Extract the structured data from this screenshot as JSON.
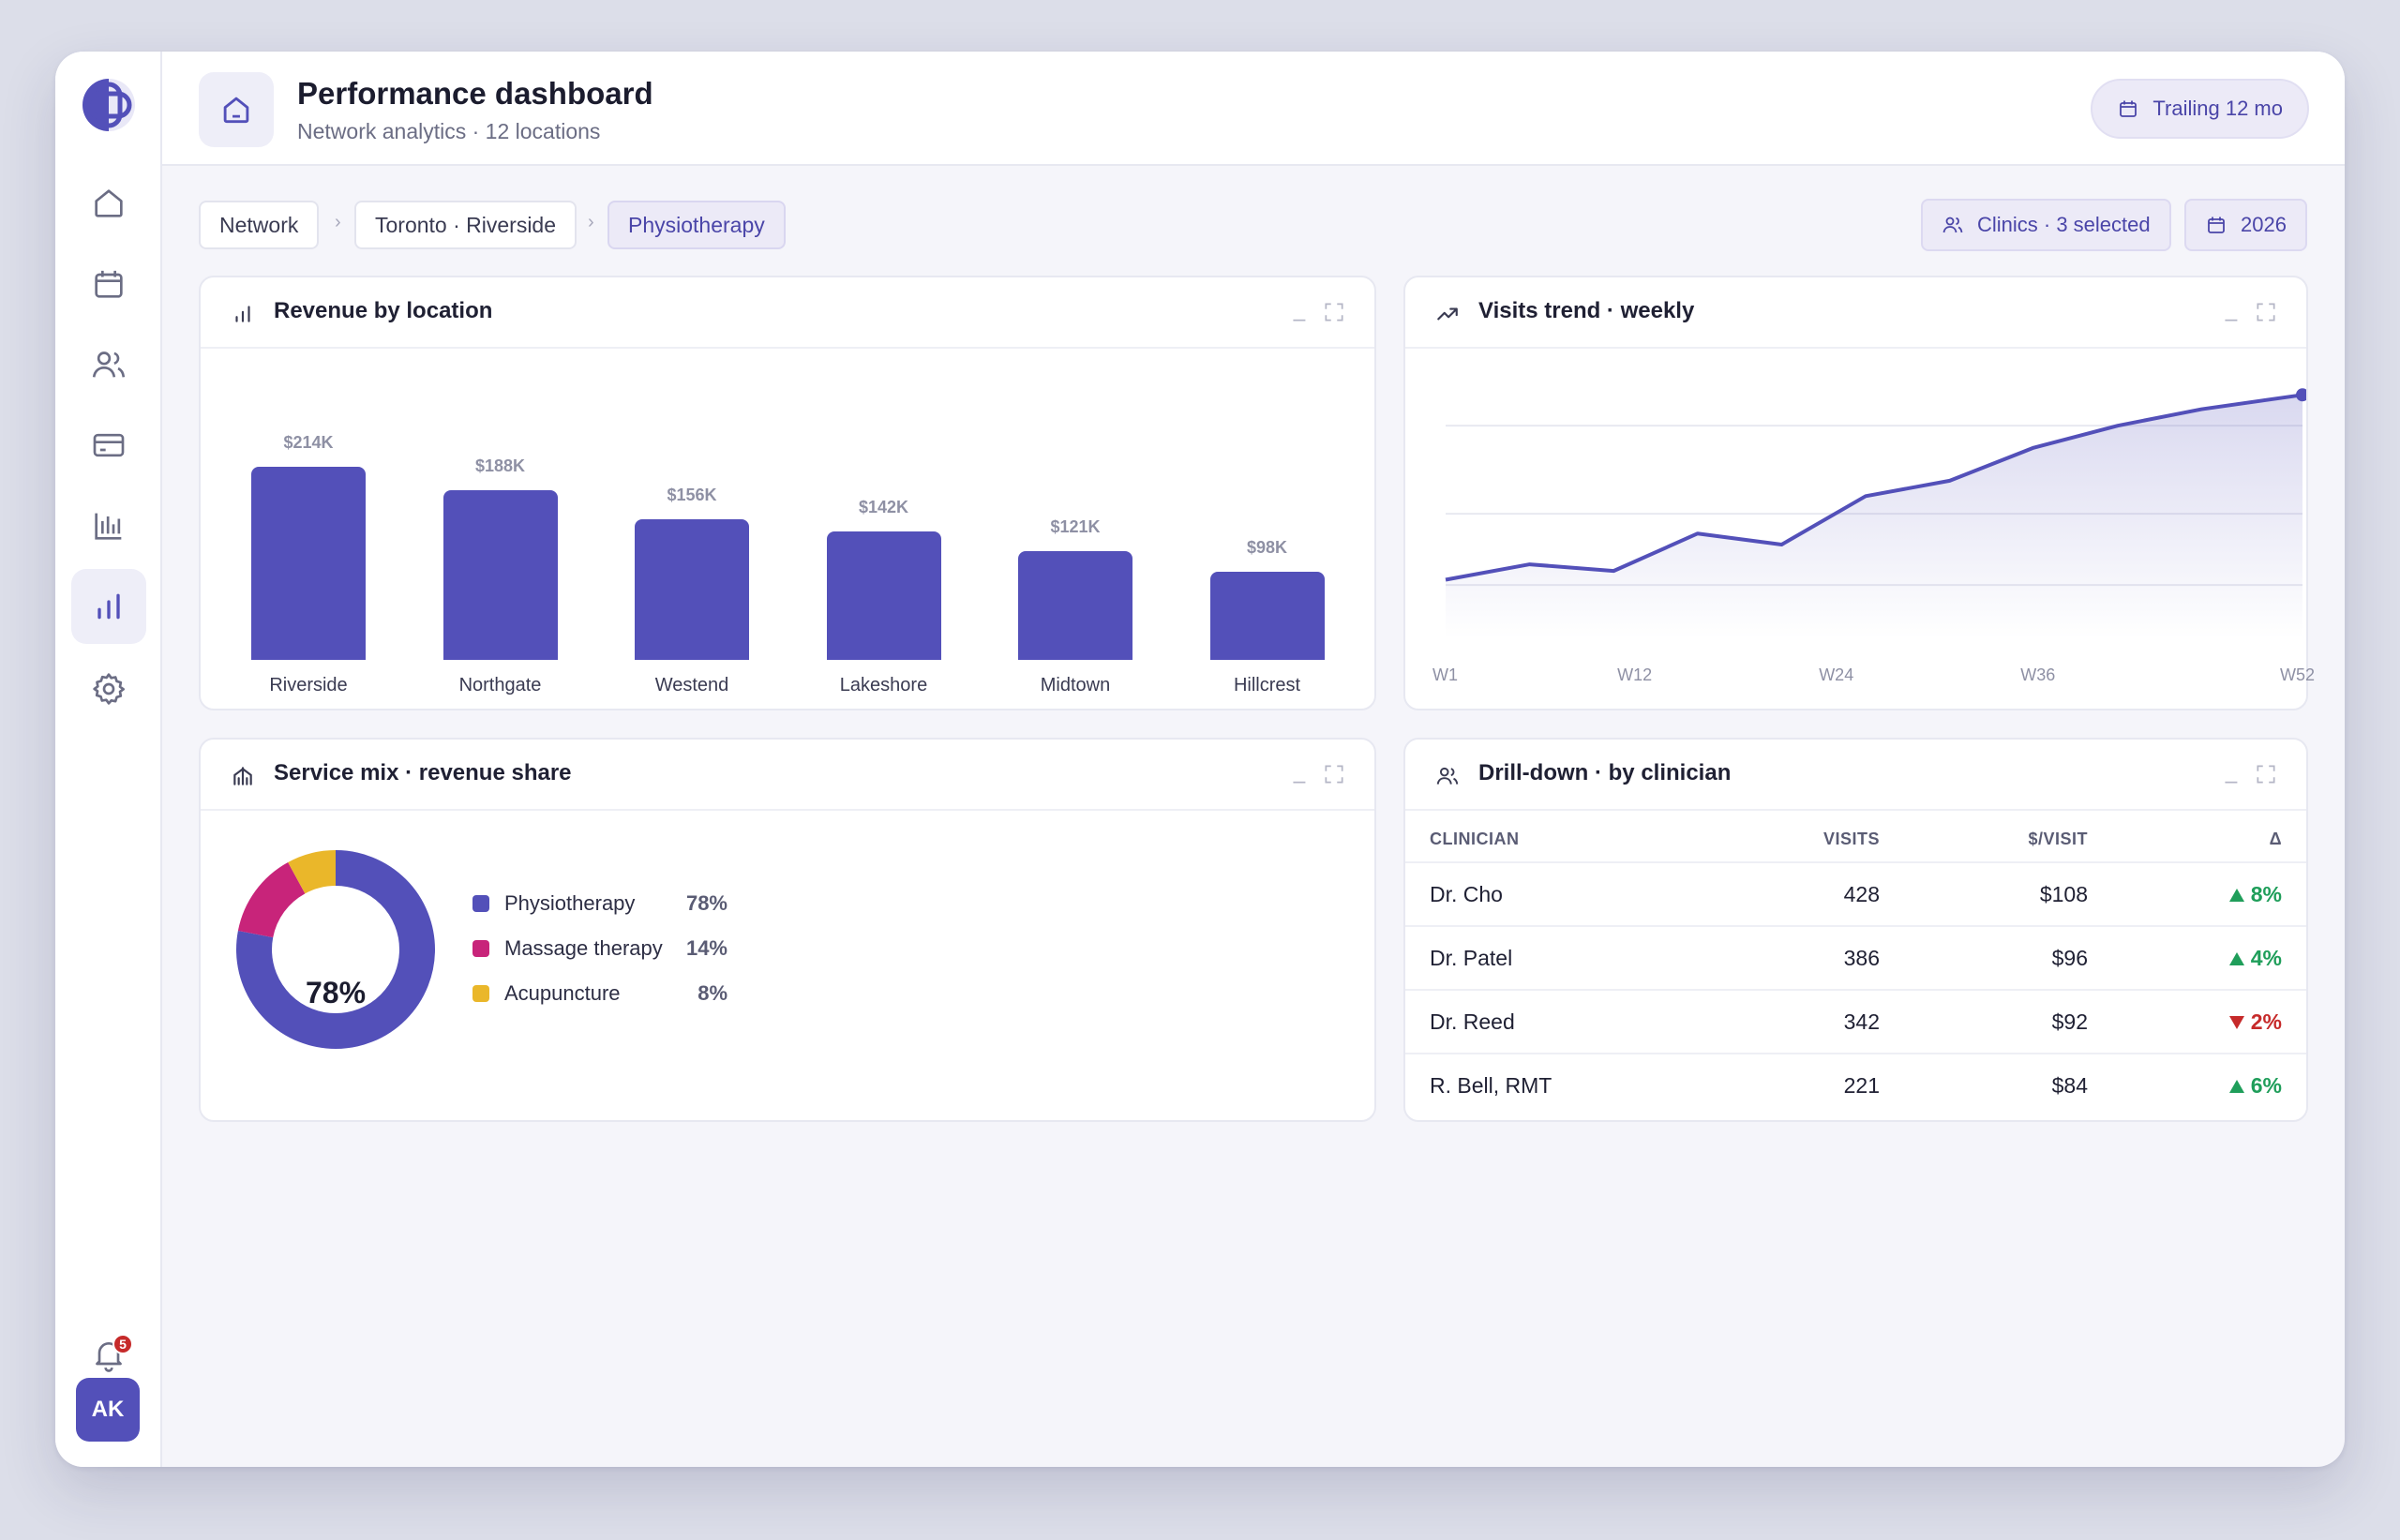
{
  "header": {
    "title": "Performance dashboard",
    "subtitle": "Network analytics · 12 locations",
    "period_button": "Trailing 12 mo"
  },
  "sidebar": {
    "items": [
      {
        "icon": "home-icon"
      },
      {
        "icon": "calendar-icon"
      },
      {
        "icon": "users-icon"
      },
      {
        "icon": "credit-card-icon"
      },
      {
        "icon": "bar-chart-icon"
      },
      {
        "icon": "analytics-icon",
        "active": true
      },
      {
        "icon": "gear-icon"
      }
    ],
    "notifications_count": "5",
    "avatar_initials": "AK"
  },
  "breadcrumb": {
    "items": [
      "Network",
      "Toronto · Riverside",
      "Physiotherapy"
    ],
    "separator": "›"
  },
  "filters": {
    "clinics": "Clinics · 3 selected",
    "year": "2026"
  },
  "cards": {
    "revenue": {
      "title": "Revenue by location"
    },
    "visits": {
      "title": "Visits trend · weekly"
    },
    "service": {
      "title": "Service mix · revenue share"
    },
    "drilldown": {
      "title": "Drill-down · by clinician"
    }
  },
  "chart_data": [
    {
      "type": "bar",
      "title": "Revenue by location",
      "categories": [
        "Riverside",
        "Northgate",
        "Westend",
        "Lakeshore",
        "Midtown",
        "Hillcrest"
      ],
      "values": [
        214,
        188,
        156,
        142,
        121,
        98
      ],
      "value_labels": [
        "$214K",
        "$188K",
        "$156K",
        "$142K",
        "$121K",
        "$98K"
      ],
      "color": "#5350b9"
    },
    {
      "type": "area",
      "title": "Visits trend · weekly",
      "x_ticks": [
        "W1",
        "W12",
        "W24",
        "W36",
        "W52"
      ],
      "x": [
        1,
        6,
        11,
        16,
        21,
        26,
        31,
        36,
        41,
        46,
        52
      ],
      "values": [
        0.2,
        0.34,
        0.28,
        0.62,
        0.52,
        0.96,
        1.1,
        1.4,
        1.6,
        1.75,
        1.88
      ],
      "ylim": [
        0,
        2.3
      ],
      "grid": true,
      "color": "#5350b9"
    },
    {
      "type": "pie",
      "title": "Service mix · revenue share",
      "center_label": "78%",
      "slices": [
        {
          "label": "Physiotherapy",
          "value": 78,
          "pct": "78%",
          "color": "#5350b9"
        },
        {
          "label": "Massage therapy",
          "value": 14,
          "pct": "14%",
          "color": "#c8247a"
        },
        {
          "label": "Acupuncture",
          "value": 8,
          "pct": "8%",
          "color": "#eab72a"
        }
      ]
    }
  ],
  "table": {
    "headers": [
      "CLINICIAN",
      "VISITS",
      "$/VISIT",
      "Δ"
    ],
    "rows": [
      {
        "clinician": "Dr. Cho",
        "visits": "428",
        "per_visit": "$108",
        "delta": "8%",
        "dir": "up"
      },
      {
        "clinician": "Dr. Patel",
        "visits": "386",
        "per_visit": "$96",
        "delta": "4%",
        "dir": "up"
      },
      {
        "clinician": "Dr. Reed",
        "visits": "342",
        "per_visit": "$92",
        "delta": "2%",
        "dir": "down"
      },
      {
        "clinician": "R. Bell, RMT",
        "visits": "221",
        "per_visit": "$84",
        "delta": "6%",
        "dir": "up"
      }
    ]
  },
  "colors": {
    "accent": "#5350b9",
    "up": "#1f9e5a",
    "down": "#c62a2a"
  }
}
